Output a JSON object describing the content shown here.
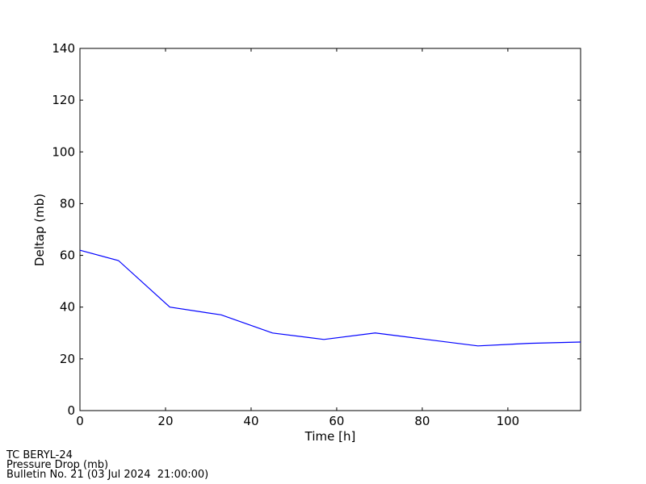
{
  "chart_data": {
    "type": "line",
    "xlabel": "Time [h]",
    "ylabel": "Deltap (mb)",
    "xlim": [
      0,
      117
    ],
    "ylim": [
      0,
      140
    ],
    "xticks": [
      0,
      20,
      40,
      60,
      80,
      100
    ],
    "yticks": [
      0,
      20,
      40,
      60,
      80,
      100,
      120,
      140
    ],
    "grid": false,
    "series": [
      {
        "color": "#0000ff",
        "x": [
          0,
          9,
          21,
          33,
          45,
          57,
          69,
          81,
          93,
          105,
          117
        ],
        "y": [
          62,
          58,
          40,
          37,
          30,
          27.5,
          30,
          27.5,
          25,
          26,
          26.5
        ]
      }
    ]
  },
  "footer": {
    "line1": "TC BERYL-24",
    "line2": "Pressure Drop (mb)",
    "line3": "Bulletin No. 21 (03 Jul 2024  21:00:00)"
  }
}
